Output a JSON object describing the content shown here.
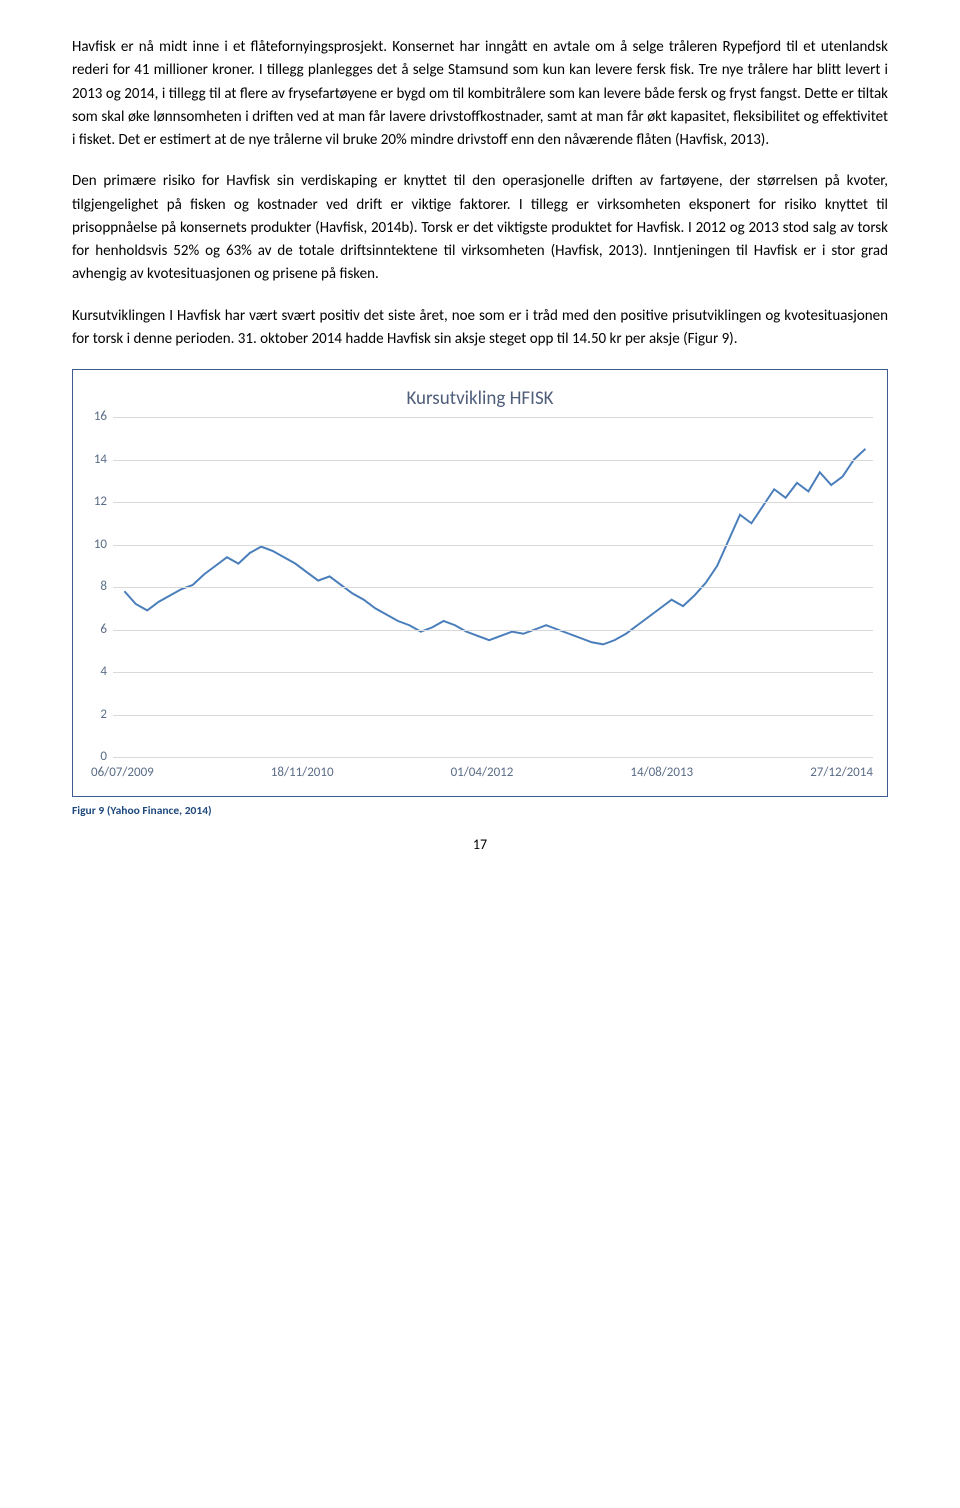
{
  "paragraphs": {
    "p1": "Havfisk er nå midt inne i et flåtefornyingsprosjekt. Konsernet har inngått en avtale om å selge tråleren Rypefjord til et utenlandsk rederi for 41 millioner kroner. I tillegg planlegges det å selge Stamsund som kun kan levere fersk fisk. Tre nye trålere har blitt levert i 2013 og 2014, i tillegg til at flere av frysefartøyene er bygd om til kombitrålere som kan levere både fersk og fryst fangst. Dette er tiltak som skal øke lønnsomheten i driften ved at man får lavere drivstoffkostnader, samt at man får økt kapasitet, fleksibilitet og effektivitet i fisket. Det er estimert at de nye trålerne vil bruke 20% mindre drivstoff enn den nåværende flåten (Havfisk, 2013).",
    "p2": "Den primære risiko for Havfisk sin verdiskaping er knyttet til den operasjonelle driften av fartøyene, der størrelsen på kvoter, tilgjengelighet på fisken og kostnader ved drift er viktige faktorer. I tillegg er virksomheten eksponert for risiko knyttet til prisoppnåelse på konsernets produkter (Havfisk, 2014b). Torsk er det viktigste produktet for Havfisk. I 2012 og 2013 stod salg av torsk for henholdsvis 52% og 63% av de totale driftsinntektene til virksomheten (Havfisk, 2013). Inntjeningen til Havfisk er i stor grad avhengig av kvotesituasjonen og prisene på fisken.",
    "p3": "Kursutviklingen I Havfisk har vært svært positiv det siste året, noe som er i tråd med den positive prisutviklingen og kvotesituasjonen for torsk i denne perioden. 31. oktober 2014 hadde Havfisk sin aksje steget opp til 14.50 kr per aksje (Figur 9)."
  },
  "chart": {
    "type": "line",
    "title": "Kursutvikling HFISK",
    "title_color": "#4f5f7a",
    "title_fontsize": 19,
    "border_color": "#3d5b8c",
    "background_color": "#ffffff",
    "grid_color": "#d9d9d9",
    "line_color": "#4a7ebb",
    "line_width": 2,
    "y": {
      "min": 0,
      "max": 16,
      "step": 2,
      "ticks": [
        0,
        2,
        4,
        6,
        8,
        10,
        12,
        14,
        16
      ],
      "label_color": "#5b6d88",
      "label_fontsize": 13
    },
    "x": {
      "labels": [
        "06/07/2009",
        "18/11/2010",
        "01/04/2012",
        "14/08/2013",
        "27/12/2014"
      ],
      "label_color": "#5b6d88",
      "label_fontsize": 13
    },
    "series": [
      {
        "x": 0.015,
        "y": 7.8
      },
      {
        "x": 0.03,
        "y": 7.2
      },
      {
        "x": 0.045,
        "y": 6.9
      },
      {
        "x": 0.06,
        "y": 7.3
      },
      {
        "x": 0.075,
        "y": 7.6
      },
      {
        "x": 0.09,
        "y": 7.9
      },
      {
        "x": 0.105,
        "y": 8.1
      },
      {
        "x": 0.12,
        "y": 8.6
      },
      {
        "x": 0.135,
        "y": 9.0
      },
      {
        "x": 0.15,
        "y": 9.4
      },
      {
        "x": 0.165,
        "y": 9.1
      },
      {
        "x": 0.18,
        "y": 9.6
      },
      {
        "x": 0.195,
        "y": 9.9
      },
      {
        "x": 0.21,
        "y": 9.7
      },
      {
        "x": 0.225,
        "y": 9.4
      },
      {
        "x": 0.24,
        "y": 9.1
      },
      {
        "x": 0.255,
        "y": 8.7
      },
      {
        "x": 0.27,
        "y": 8.3
      },
      {
        "x": 0.285,
        "y": 8.5
      },
      {
        "x": 0.3,
        "y": 8.1
      },
      {
        "x": 0.315,
        "y": 7.7
      },
      {
        "x": 0.33,
        "y": 7.4
      },
      {
        "x": 0.345,
        "y": 7.0
      },
      {
        "x": 0.36,
        "y": 6.7
      },
      {
        "x": 0.375,
        "y": 6.4
      },
      {
        "x": 0.39,
        "y": 6.2
      },
      {
        "x": 0.405,
        "y": 5.9
      },
      {
        "x": 0.42,
        "y": 6.1
      },
      {
        "x": 0.435,
        "y": 6.4
      },
      {
        "x": 0.45,
        "y": 6.2
      },
      {
        "x": 0.465,
        "y": 5.9
      },
      {
        "x": 0.48,
        "y": 5.7
      },
      {
        "x": 0.495,
        "y": 5.5
      },
      {
        "x": 0.51,
        "y": 5.7
      },
      {
        "x": 0.525,
        "y": 5.9
      },
      {
        "x": 0.54,
        "y": 5.8
      },
      {
        "x": 0.555,
        "y": 6.0
      },
      {
        "x": 0.57,
        "y": 6.2
      },
      {
        "x": 0.585,
        "y": 6.0
      },
      {
        "x": 0.6,
        "y": 5.8
      },
      {
        "x": 0.615,
        "y": 5.6
      },
      {
        "x": 0.63,
        "y": 5.4
      },
      {
        "x": 0.645,
        "y": 5.3
      },
      {
        "x": 0.66,
        "y": 5.5
      },
      {
        "x": 0.675,
        "y": 5.8
      },
      {
        "x": 0.69,
        "y": 6.2
      },
      {
        "x": 0.705,
        "y": 6.6
      },
      {
        "x": 0.72,
        "y": 7.0
      },
      {
        "x": 0.735,
        "y": 7.4
      },
      {
        "x": 0.75,
        "y": 7.1
      },
      {
        "x": 0.765,
        "y": 7.6
      },
      {
        "x": 0.78,
        "y": 8.2
      },
      {
        "x": 0.795,
        "y": 9.0
      },
      {
        "x": 0.81,
        "y": 10.2
      },
      {
        "x": 0.825,
        "y": 11.4
      },
      {
        "x": 0.84,
        "y": 11.0
      },
      {
        "x": 0.855,
        "y": 11.8
      },
      {
        "x": 0.87,
        "y": 12.6
      },
      {
        "x": 0.885,
        "y": 12.2
      },
      {
        "x": 0.9,
        "y": 12.9
      },
      {
        "x": 0.915,
        "y": 12.5
      },
      {
        "x": 0.93,
        "y": 13.4
      },
      {
        "x": 0.945,
        "y": 12.8
      },
      {
        "x": 0.96,
        "y": 13.2
      },
      {
        "x": 0.975,
        "y": 14.0
      },
      {
        "x": 0.99,
        "y": 14.5
      }
    ]
  },
  "caption": {
    "text": "Figur 9 (Yahoo Finance, 2014)",
    "color": "#1f497d",
    "fontsize": 11.5
  },
  "page_number": "17"
}
